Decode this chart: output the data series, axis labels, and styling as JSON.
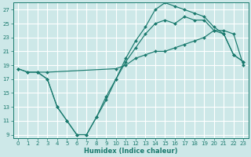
{
  "xlabel": "Humidex (Indice chaleur)",
  "bg_color": "#cde8e8",
  "grid_color": "#ffffff",
  "line_color": "#1a7a6e",
  "xlim": [
    -0.5,
    23.5
  ],
  "ylim": [
    8.5,
    28.0
  ],
  "xticks": [
    0,
    1,
    2,
    3,
    4,
    5,
    6,
    7,
    8,
    9,
    10,
    11,
    12,
    13,
    14,
    15,
    16,
    17,
    18,
    19,
    20,
    21,
    22,
    23
  ],
  "yticks": [
    9,
    11,
    13,
    15,
    17,
    19,
    21,
    23,
    25,
    27
  ],
  "line1_x": [
    0,
    1,
    2,
    3,
    10,
    11,
    12,
    13,
    14,
    15,
    16,
    17,
    18,
    19,
    20,
    21,
    22,
    23
  ],
  "line1_y": [
    18.5,
    18.0,
    18.0,
    18.0,
    18.5,
    19.0,
    20.0,
    20.5,
    21.0,
    21.0,
    21.5,
    22.0,
    22.5,
    23.0,
    24.0,
    24.0,
    23.5,
    19.0
  ],
  "line2_x": [
    0,
    1,
    2,
    3,
    4,
    5,
    6,
    7,
    8,
    9,
    10,
    11,
    12,
    13,
    14,
    15,
    16,
    17,
    18,
    19,
    20,
    21,
    22,
    23
  ],
  "line2_y": [
    18.5,
    18.0,
    18.0,
    17.0,
    13.0,
    11.0,
    9.0,
    9.0,
    11.5,
    14.0,
    17.0,
    19.5,
    21.5,
    23.5,
    25.0,
    25.5,
    25.0,
    26.0,
    25.5,
    25.5,
    24.0,
    23.5,
    20.5,
    19.5
  ],
  "line3_x": [
    2,
    3,
    4,
    5,
    6,
    7,
    8,
    9,
    10,
    11,
    12,
    13,
    14,
    15,
    16,
    17,
    18,
    19,
    20,
    21,
    22,
    23
  ],
  "line3_y": [
    18.0,
    17.0,
    13.0,
    11.0,
    9.0,
    9.0,
    11.5,
    14.5,
    17.0,
    20.0,
    22.5,
    24.5,
    27.0,
    28.0,
    27.5,
    27.0,
    26.5,
    26.0,
    24.5,
    23.5,
    20.5,
    19.5
  ]
}
